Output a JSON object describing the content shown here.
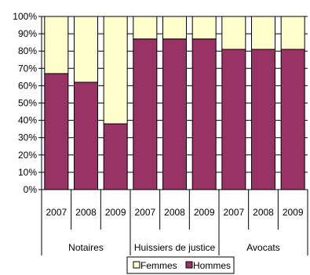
{
  "chart_data": {
    "type": "bar",
    "stacked": true,
    "percent": true,
    "categories": [
      "2007",
      "2008",
      "2009",
      "2007",
      "2008",
      "2009",
      "2007",
      "2008",
      "2009"
    ],
    "groups": [
      {
        "label": "Notaires",
        "span": [
          0,
          3
        ]
      },
      {
        "label": "Huissiers de justice",
        "span": [
          3,
          6
        ]
      },
      {
        "label": "Avocats",
        "span": [
          6,
          9
        ]
      }
    ],
    "series": [
      {
        "name": "Hommes",
        "color": "#993366",
        "values": [
          67,
          62,
          38,
          87,
          87,
          87,
          81,
          81,
          81
        ]
      },
      {
        "name": "Femmes",
        "color": "#FFFFCC",
        "values": [
          33,
          38,
          62,
          13,
          13,
          13,
          19,
          19,
          19
        ]
      }
    ],
    "y_ticks": [
      "0%",
      "10%",
      "20%",
      "30%",
      "40%",
      "50%",
      "60%",
      "70%",
      "80%",
      "90%",
      "100%"
    ],
    "ylim": [
      0,
      100
    ],
    "grid": true,
    "legend": {
      "position": "bottom",
      "items": [
        "Femmes",
        "Hommes"
      ]
    }
  }
}
